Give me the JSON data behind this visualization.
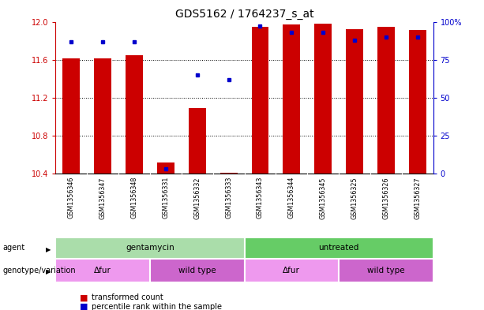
{
  "title": "GDS5162 / 1764237_s_at",
  "samples": [
    "GSM1356346",
    "GSM1356347",
    "GSM1356348",
    "GSM1356331",
    "GSM1356332",
    "GSM1356333",
    "GSM1356343",
    "GSM1356344",
    "GSM1356345",
    "GSM1356325",
    "GSM1356326",
    "GSM1356327"
  ],
  "red_values": [
    11.61,
    11.61,
    11.65,
    10.52,
    11.09,
    10.41,
    11.95,
    11.97,
    11.98,
    11.92,
    11.95,
    11.91
  ],
  "blue_values": [
    87,
    87,
    87,
    3,
    65,
    62,
    97,
    93,
    93,
    88,
    90,
    90
  ],
  "ylim_left": [
    10.4,
    12.0
  ],
  "ylim_right": [
    0,
    100
  ],
  "yticks_left": [
    10.4,
    10.8,
    11.2,
    11.6,
    12.0
  ],
  "yticks_right": [
    0,
    25,
    50,
    75,
    100
  ],
  "red_color": "#cc0000",
  "blue_color": "#0000cc",
  "bar_width": 0.55,
  "agent_labels": [
    {
      "label": "gentamycin",
      "start": 0,
      "end": 6,
      "color": "#aaddaa"
    },
    {
      "label": "untreated",
      "start": 6,
      "end": 12,
      "color": "#66cc66"
    }
  ],
  "genotype_labels": [
    {
      "label": "Δfur",
      "start": 0,
      "end": 3,
      "color": "#ee99ee"
    },
    {
      "label": "wild type",
      "start": 3,
      "end": 6,
      "color": "#cc66cc"
    },
    {
      "label": "Δfur",
      "start": 6,
      "end": 9,
      "color": "#ee99ee"
    },
    {
      "label": "wild type",
      "start": 9,
      "end": 12,
      "color": "#cc66cc"
    }
  ],
  "bg_color": "#ffffff",
  "plot_bg_color": "#ffffff",
  "sample_bg_color": "#c8c8c8",
  "tick_label_fontsize": 7,
  "title_fontsize": 10
}
